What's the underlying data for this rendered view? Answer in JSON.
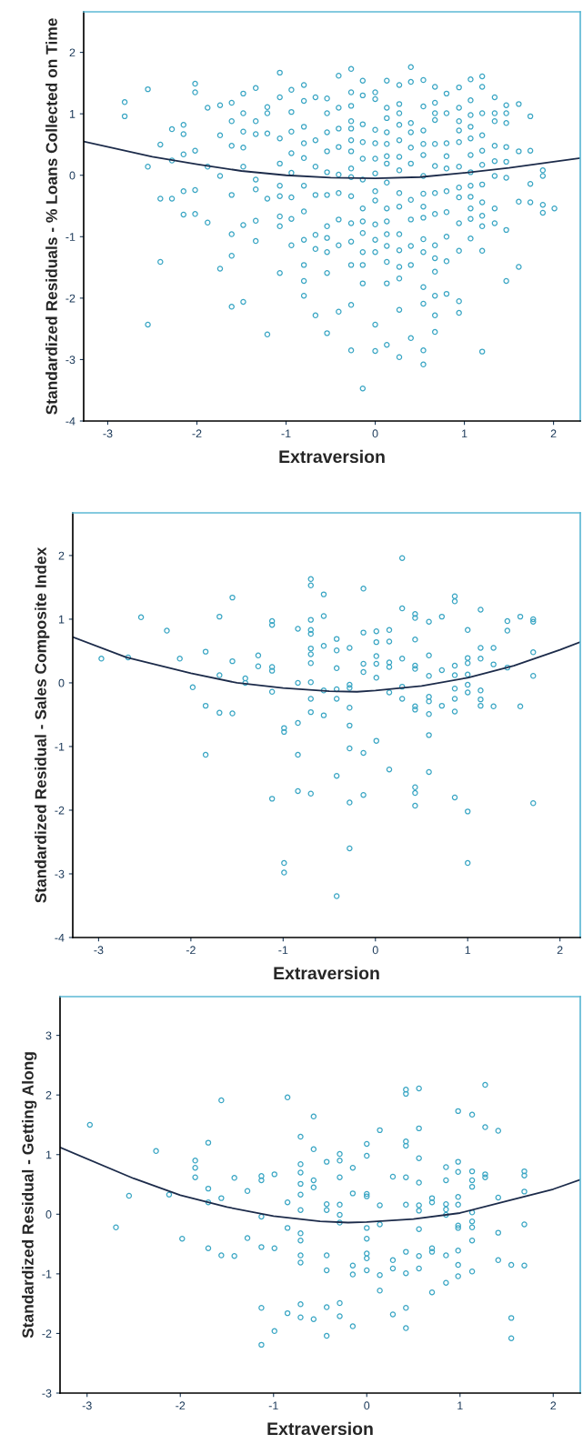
{
  "chart_data": [
    {
      "type": "scatter",
      "xlabel": "Extraversion",
      "ylabel": "Standardized Residuals - % Loans Collected on Time",
      "xlim": [
        -3.27,
        2.3
      ],
      "ylim": [
        -4,
        2.66
      ],
      "xticks": [
        -3,
        -2,
        -1,
        0,
        1,
        2
      ],
      "yticks": [
        -4,
        -3,
        -2,
        -1,
        0,
        1,
        2
      ],
      "grid": false,
      "marker": "circle",
      "series": [
        {
          "color": "#3aa6c4",
          "x": [
            -2.81,
            -2.81,
            -2.55,
            -2.55,
            -2.55,
            -2.41,
            -2.41,
            -2.41,
            -2.28,
            -2.28,
            -2.28,
            -2.15,
            -2.15,
            -2.15,
            -2.15,
            -2.15,
            -2.02,
            -2.02,
            -2.02,
            -2.02,
            -2.02,
            -1.88,
            -1.88,
            -1.88,
            -1.74,
            -1.74,
            -1.74,
            -1.74,
            -1.61,
            -1.61,
            -1.61,
            -1.61,
            -1.61,
            -1.61,
            -1.61,
            -1.48,
            -1.48,
            -1.48,
            -1.48,
            -1.48,
            -1.48,
            -1.48,
            -1.34,
            -1.34,
            -1.34,
            -1.34,
            -1.34,
            -1.34,
            -1.34,
            -1.21,
            -1.21,
            -1.21,
            -1.21,
            -1.21,
            -1.07,
            -1.07,
            -1.07,
            -1.07,
            -1.07,
            -1.07,
            -1.07,
            -1.07,
            -1.07,
            -0.94,
            -0.94,
            -0.94,
            -0.94,
            -0.94,
            -0.94,
            -0.94,
            -0.94,
            -0.8,
            -0.8,
            -0.8,
            -0.8,
            -0.8,
            -0.8,
            -0.8,
            -0.8,
            -0.8,
            -0.8,
            -0.8,
            -0.67,
            -0.67,
            -0.67,
            -0.67,
            -0.67,
            -0.67,
            -0.67,
            -0.54,
            -0.54,
            -0.54,
            -0.54,
            -0.54,
            -0.54,
            -0.54,
            -0.54,
            -0.54,
            -0.54,
            -0.54,
            -0.41,
            -0.41,
            -0.41,
            -0.41,
            -0.41,
            -0.41,
            -0.41,
            -0.41,
            -0.41,
            -0.27,
            -0.27,
            -0.27,
            -0.27,
            -0.27,
            -0.27,
            -0.27,
            -0.27,
            -0.27,
            -0.27,
            -0.27,
            -0.27,
            -0.27,
            -0.27,
            -0.27,
            -0.14,
            -0.14,
            -0.14,
            -0.14,
            -0.14,
            -0.14,
            -0.14,
            -0.14,
            -0.14,
            -0.14,
            -0.14,
            -0.14,
            -0.14,
            0,
            0,
            0,
            0,
            0,
            0,
            0,
            0,
            0,
            0,
            0,
            0,
            0,
            0.13,
            0.13,
            0.13,
            0.13,
            0.13,
            0.13,
            0.13,
            0.13,
            0.13,
            0.13,
            0.13,
            0.13,
            0.13,
            0.13,
            0.13,
            0.27,
            0.27,
            0.27,
            0.27,
            0.27,
            0.27,
            0.27,
            0.27,
            0.27,
            0.27,
            0.27,
            0.27,
            0.27,
            0.27,
            0.27,
            0.4,
            0.4,
            0.4,
            0.4,
            0.4,
            0.4,
            0.4,
            0.4,
            0.4,
            0.4,
            0.4,
            0.54,
            0.54,
            0.54,
            0.54,
            0.54,
            0.54,
            0.54,
            0.54,
            0.54,
            0.54,
            0.54,
            0.54,
            0.54,
            0.54,
            0.54,
            0.67,
            0.67,
            0.67,
            0.67,
            0.67,
            0.67,
            0.67,
            0.67,
            0.67,
            0.67,
            0.67,
            0.67,
            0.67,
            0.67,
            0.8,
            0.8,
            0.8,
            0.8,
            0.8,
            0.8,
            0.8,
            0.8,
            0.8,
            0.8,
            0.94,
            0.94,
            0.94,
            0.94,
            0.94,
            0.94,
            0.94,
            0.94,
            0.94,
            0.94,
            0.94,
            0.94,
            1.07,
            1.07,
            1.07,
            1.07,
            1.07,
            1.07,
            1.07,
            1.07,
            1.07,
            1.07,
            1.07,
            1.07,
            1.2,
            1.2,
            1.2,
            1.2,
            1.2,
            1.2,
            1.2,
            1.2,
            1.2,
            1.2,
            1.2,
            1.2,
            1.34,
            1.34,
            1.34,
            1.34,
            1.34,
            1.34,
            1.34,
            1.34,
            1.47,
            1.47,
            1.47,
            1.47,
            1.47,
            1.47,
            1.47,
            1.47,
            1.61,
            1.61,
            1.61,
            1.61,
            1.74,
            1.74,
            1.74,
            1.74,
            1.88,
            1.88,
            1.88,
            1.88,
            2.01
          ],
          "values": [
            1.19,
            0.96,
            1.4,
            0.14,
            -2.43,
            0.5,
            -0.38,
            -1.41,
            0.75,
            -0.38,
            0.24,
            0.82,
            0.67,
            0.34,
            -0.26,
            -0.64,
            1.49,
            1.35,
            0.4,
            -0.24,
            -0.63,
            1.1,
            0.14,
            -0.77,
            1.14,
            0.65,
            -0.01,
            -1.52,
            1.18,
            0.88,
            0.48,
            -0.32,
            -0.96,
            -1.31,
            -2.14,
            1.33,
            1.01,
            0.71,
            0.45,
            0.14,
            -0.81,
            -2.06,
            1.42,
            0.88,
            0.67,
            -0.07,
            -0.23,
            -0.74,
            -1.07,
            1.11,
            1.01,
            0.68,
            -0.38,
            -2.59,
            1.67,
            1.27,
            0.6,
            0.19,
            -0.17,
            -0.34,
            -0.67,
            -0.83,
            -1.59,
            1.39,
            1.03,
            0.71,
            0.36,
            0.04,
            -0.36,
            -0.71,
            -1.14,
            1.47,
            1.21,
            0.79,
            0.52,
            0.28,
            -0.17,
            -0.59,
            -1.05,
            -1.46,
            -1.72,
            -1.96,
            1.27,
            0.57,
            0.14,
            -0.32,
            -0.97,
            -1.2,
            -2.28,
            1.25,
            1.01,
            0.7,
            0.39,
            0.05,
            -0.32,
            -0.83,
            -1.02,
            -1.25,
            -1.59,
            -2.57,
            1.62,
            1.1,
            0.76,
            0.46,
            0.01,
            -0.29,
            -0.72,
            -1.14,
            -2.22,
            1.73,
            1.35,
            1.13,
            0.88,
            0.76,
            0.57,
            0.39,
            0.11,
            -0.03,
            -0.34,
            -0.78,
            -1.08,
            -1.46,
            -2.11,
            -2.85,
            1.54,
            1.3,
            0.83,
            0.54,
            0.27,
            -0.07,
            -0.54,
            -0.75,
            -0.94,
            -1.25,
            -1.46,
            -1.76,
            -3.47,
            1.35,
            1.24,
            0.74,
            0.52,
            0.27,
            0.03,
            -0.26,
            -0.41,
            -0.8,
            -1.05,
            -1.25,
            -2.43,
            -2.86,
            1.54,
            1.1,
            0.93,
            0.7,
            0.51,
            0.31,
            0.19,
            -0.12,
            -0.54,
            -0.75,
            -0.96,
            -1.15,
            -1.41,
            -1.76,
            -2.76,
            1.47,
            1.16,
            1.01,
            0.82,
            0.57,
            0.3,
            0.08,
            -0.29,
            -0.51,
            -0.96,
            -1.22,
            -1.49,
            -1.68,
            -2.19,
            -2.96,
            1.76,
            1.52,
            0.85,
            0.7,
            0.45,
            0.19,
            -0.4,
            -0.72,
            -1.15,
            -1.46,
            -2.65,
            1.55,
            1.12,
            0.73,
            0.51,
            0.33,
            -0.01,
            -0.3,
            -0.51,
            -0.69,
            -1.04,
            -1.25,
            -1.82,
            -2.09,
            -2.85,
            -3.08,
            1.44,
            1.18,
            1.01,
            0.9,
            0.51,
            0.15,
            -0.29,
            -0.63,
            -1.14,
            -1.35,
            -1.57,
            -1.96,
            -2.28,
            -2.55,
            1.33,
            1.01,
            0.52,
            0.31,
            0.11,
            -0.26,
            -0.6,
            -1.0,
            -1.4,
            -1.93,
            1.43,
            1.1,
            0.88,
            0.73,
            0.54,
            0.14,
            -0.2,
            -0.36,
            -0.78,
            -1.23,
            -2.05,
            -2.24,
            1.56,
            1.22,
            0.98,
            0.79,
            0.6,
            0.33,
            0.05,
            -0.17,
            -0.35,
            -0.54,
            -0.71,
            -1.03,
            1.61,
            1.44,
            1.01,
            0.65,
            0.4,
            0.17,
            -0.15,
            -0.44,
            -0.66,
            -0.83,
            -1.23,
            -2.87,
            1.27,
            1.01,
            0.88,
            0.48,
            0.23,
            -0.01,
            -0.54,
            -0.78,
            1.14,
            1.01,
            0.85,
            0.46,
            0.22,
            -0.04,
            -0.89,
            -1.72,
            1.16,
            0.39,
            -0.43,
            -1.49,
            0.96,
            0.4,
            -0.14,
            -0.44,
            0.08,
            -0.01,
            -0.48,
            -0.61,
            -0.54
          ]
        },
        {
          "type": "line",
          "color": "#1c2b4a",
          "line_style": "solid",
          "marker": "none",
          "x": [
            -3.27,
            -2.5,
            -2,
            -1.5,
            -1,
            -0.5,
            0,
            0.5,
            1,
            1.5,
            2,
            2.3
          ],
          "values": [
            0.55,
            0.3,
            0.18,
            0.07,
            0.0,
            -0.04,
            -0.05,
            -0.03,
            0.04,
            0.12,
            0.22,
            0.28
          ]
        }
      ]
    },
    {
      "type": "scatter",
      "xlabel": "Extraversion",
      "ylabel": "Standardized Residual - Sales Composite Index",
      "xlim": [
        -3.28,
        2.22
      ],
      "ylim": [
        -4,
        2.67
      ],
      "xticks": [
        -3,
        -2,
        -1,
        0,
        1,
        2
      ],
      "yticks": [
        -4,
        -3,
        -2,
        -1,
        0,
        1,
        2
      ],
      "grid": false,
      "marker": "circle",
      "series": [
        {
          "color": "#3aa6c4",
          "x": [
            -2.97,
            -2.68,
            -2.54,
            -2.26,
            -2.12,
            -1.98,
            -1.84,
            -1.84,
            -1.84,
            -1.69,
            -1.69,
            -1.69,
            -1.55,
            -1.55,
            -1.55,
            -1.41,
            -1.41,
            -1.27,
            -1.27,
            -1.12,
            -1.12,
            -1.12,
            -1.12,
            -1.12,
            -1.12,
            -0.99,
            -0.99,
            -0.99,
            -0.99,
            -0.84,
            -0.84,
            -0.84,
            -0.84,
            -0.84,
            -0.7,
            -0.7,
            -0.7,
            -0.7,
            -0.7,
            -0.7,
            -0.7,
            -0.7,
            -0.7,
            -0.7,
            -0.7,
            -0.7,
            -0.56,
            -0.56,
            -0.56,
            -0.56,
            -0.56,
            -0.42,
            -0.42,
            -0.42,
            -0.42,
            -0.42,
            -0.42,
            -0.42,
            -0.28,
            -0.28,
            -0.28,
            -0.28,
            -0.28,
            -0.28,
            -0.28,
            -0.28,
            -0.13,
            -0.13,
            -0.13,
            -0.13,
            -0.13,
            -0.13,
            0.01,
            0.01,
            0.01,
            0.01,
            0.01,
            0.01,
            0.15,
            0.15,
            0.15,
            0.15,
            0.15,
            0.15,
            0.29,
            0.29,
            0.29,
            0.29,
            0.29,
            0.43,
            0.43,
            0.43,
            0.43,
            0.43,
            0.43,
            0.43,
            0.43,
            0.43,
            0.43,
            0.58,
            0.58,
            0.58,
            0.58,
            0.58,
            0.58,
            0.58,
            0.58,
            0.72,
            0.72,
            0.72,
            0.86,
            0.86,
            0.86,
            0.86,
            0.86,
            0.86,
            0.86,
            0.86,
            1.0,
            1.0,
            1.0,
            1.0,
            1.0,
            1.0,
            1.0,
            1.0,
            1.14,
            1.14,
            1.14,
            1.14,
            1.14,
            1.14,
            1.28,
            1.28,
            1.28,
            1.43,
            1.43,
            1.43,
            1.57,
            1.57,
            1.71,
            1.71,
            1.71,
            1.71,
            1.71
          ],
          "values": [
            0.38,
            0.4,
            1.03,
            0.82,
            0.38,
            -0.07,
            0.49,
            -0.36,
            -1.13,
            1.04,
            0.12,
            -0.47,
            1.34,
            0.34,
            -0.48,
            0.07,
            0.0,
            0.43,
            0.26,
            0.97,
            0.91,
            0.25,
            0.19,
            -0.14,
            -1.82,
            -0.71,
            -0.77,
            -2.83,
            -2.98,
            0.85,
            0.0,
            -0.63,
            -1.13,
            -1.7,
            1.63,
            1.53,
            0.99,
            0.83,
            0.77,
            0.54,
            0.45,
            0.31,
            0.01,
            -0.25,
            -0.46,
            -1.74,
            1.39,
            1.05,
            0.58,
            -0.12,
            -0.51,
            0.69,
            0.51,
            0.23,
            -0.1,
            -0.25,
            -1.46,
            -3.35,
            0.55,
            -0.03,
            -0.08,
            -0.39,
            -0.67,
            -1.03,
            -1.88,
            -2.6,
            1.48,
            0.79,
            0.3,
            0.17,
            -1.1,
            -1.76,
            0.81,
            0.64,
            0.42,
            0.3,
            0.08,
            -0.91,
            0.83,
            0.65,
            0.32,
            0.25,
            -0.15,
            -1.36,
            1.96,
            1.17,
            0.38,
            -0.06,
            -0.25,
            1.08,
            1.02,
            0.68,
            0.27,
            0.22,
            -0.37,
            -0.42,
            -1.64,
            -1.73,
            -1.93,
            0.96,
            0.43,
            0.11,
            -0.22,
            -0.29,
            -0.49,
            -0.82,
            -1.4,
            1.04,
            0.2,
            -0.36,
            1.36,
            1.28,
            0.27,
            0.12,
            -0.09,
            -0.25,
            -0.45,
            -1.8,
            0.83,
            0.39,
            0.31,
            0.13,
            -0.03,
            -0.15,
            -2.02,
            -2.83,
            1.15,
            0.55,
            0.38,
            -0.12,
            -0.26,
            -0.36,
            0.55,
            0.29,
            -0.37,
            0.97,
            0.82,
            0.24,
            1.04,
            -0.37,
            1.0,
            0.96,
            0.48,
            0.11,
            -1.89
          ]
        },
        {
          "type": "line",
          "color": "#1c2b4a",
          "line_style": "solid",
          "marker": "none",
          "x": [
            -3.28,
            -2.7,
            -2,
            -1.5,
            -1,
            -0.5,
            -0.2,
            0,
            0.5,
            1,
            1.5,
            2,
            2.22
          ],
          "values": [
            0.72,
            0.4,
            0.15,
            0.0,
            -0.08,
            -0.13,
            -0.14,
            -0.12,
            -0.05,
            0.08,
            0.27,
            0.52,
            0.64
          ]
        }
      ]
    },
    {
      "type": "scatter",
      "xlabel": "Extraversion",
      "ylabel": "Standardized Residual - Getting Along",
      "xlim": [
        -3.29,
        2.29
      ],
      "ylim": [
        -3,
        3.65
      ],
      "xticks": [
        -3,
        -2,
        -1,
        0,
        1,
        2
      ],
      "yticks": [
        -3,
        -2,
        -1,
        0,
        1,
        2,
        3
      ],
      "grid": false,
      "marker": "circle",
      "series": [
        {
          "color": "#3aa6c4",
          "x": [
            -2.97,
            -2.69,
            -2.55,
            -2.26,
            -2.12,
            -1.98,
            -1.84,
            -1.84,
            -1.84,
            -1.7,
            -1.7,
            -1.7,
            -1.7,
            -1.56,
            -1.56,
            -1.56,
            -1.42,
            -1.42,
            -1.28,
            -1.28,
            -1.13,
            -1.13,
            -1.13,
            -1.13,
            -1.13,
            -1.13,
            -0.99,
            -0.99,
            -0.99,
            -0.85,
            -0.85,
            -0.85,
            -0.85,
            -0.71,
            -0.71,
            -0.71,
            -0.71,
            -0.71,
            -0.71,
            -0.71,
            -0.71,
            -0.71,
            -0.71,
            -0.71,
            -0.71,
            -0.57,
            -0.57,
            -0.57,
            -0.57,
            -0.57,
            -0.43,
            -0.43,
            -0.43,
            -0.43,
            -0.43,
            -0.43,
            -0.43,
            -0.29,
            -0.29,
            -0.29,
            -0.29,
            -0.29,
            -0.29,
            -0.29,
            -0.29,
            -0.15,
            -0.15,
            -0.15,
            -0.15,
            -0.15,
            0.0,
            0.0,
            0.0,
            0.0,
            0.0,
            0.0,
            0.0,
            0.0,
            0.0,
            0.14,
            0.14,
            0.14,
            0.14,
            0.14,
            0.28,
            0.28,
            0.28,
            0.28,
            0.42,
            0.42,
            0.42,
            0.42,
            0.42,
            0.42,
            0.42,
            0.42,
            0.42,
            0.42,
            0.56,
            0.56,
            0.56,
            0.56,
            0.56,
            0.56,
            0.56,
            0.56,
            0.56,
            0.7,
            0.7,
            0.7,
            0.7,
            0.7,
            0.85,
            0.85,
            0.85,
            0.85,
            0.85,
            0.85,
            0.85,
            0.98,
            0.98,
            0.98,
            0.98,
            0.98,
            0.98,
            0.98,
            0.98,
            0.98,
            0.98,
            1.13,
            1.13,
            1.13,
            1.13,
            1.13,
            1.13,
            1.13,
            1.13,
            1.13,
            1.27,
            1.27,
            1.27,
            1.27,
            1.41,
            1.41,
            1.41,
            1.41,
            1.55,
            1.55,
            1.55,
            1.69,
            1.69,
            1.69,
            1.69,
            1.69
          ],
          "values": [
            1.5,
            -0.22,
            0.31,
            1.06,
            0.33,
            -0.41,
            0.9,
            0.78,
            0.62,
            1.2,
            0.43,
            0.2,
            -0.57,
            1.91,
            0.27,
            -0.69,
            0.61,
            -0.7,
            0.39,
            -0.4,
            0.64,
            0.57,
            -0.04,
            -0.55,
            -1.57,
            -2.19,
            0.67,
            -0.57,
            -1.96,
            1.96,
            0.2,
            -0.23,
            -1.66,
            1.3,
            0.84,
            0.7,
            0.51,
            0.33,
            0.07,
            -0.32,
            -0.44,
            -0.69,
            -0.81,
            -1.51,
            -1.73,
            1.64,
            1.09,
            0.57,
            0.45,
            -1.76,
            0.88,
            0.17,
            0.07,
            -0.69,
            -0.94,
            -1.56,
            -2.04,
            1.01,
            0.9,
            0.62,
            0.16,
            -0.01,
            -0.14,
            -1.49,
            -1.71,
            0.78,
            0.35,
            -0.86,
            -1.01,
            -1.88,
            1.18,
            0.98,
            0.34,
            0.3,
            -0.23,
            -0.41,
            -0.66,
            -0.74,
            -0.94,
            1.41,
            0.15,
            -0.17,
            -1.02,
            -1.28,
            0.63,
            -0.77,
            -0.91,
            -1.68,
            2.09,
            2.02,
            1.22,
            1.15,
            0.62,
            0.16,
            -0.63,
            -0.99,
            -1.57,
            -1.91,
            2.11,
            1.44,
            0.94,
            0.53,
            0.15,
            0.06,
            -0.25,
            -0.7,
            -0.91,
            0.27,
            0.2,
            -0.57,
            -0.63,
            -1.31,
            0.79,
            0.57,
            0.17,
            0.08,
            -0.01,
            -0.69,
            -1.15,
            1.73,
            0.88,
            0.71,
            0.29,
            0.16,
            -0.19,
            -0.23,
            -0.61,
            -0.85,
            -1.04,
            1.67,
            0.72,
            0.57,
            0.46,
            0.03,
            -0.12,
            -0.22,
            -0.44,
            -0.96,
            2.17,
            1.46,
            0.67,
            0.62,
            1.4,
            0.28,
            -0.31,
            -0.77,
            -0.85,
            -1.74,
            -2.08,
            0.72,
            0.65,
            0.38,
            -0.17,
            -0.86
          ]
        },
        {
          "type": "line",
          "color": "#1c2b4a",
          "line_style": "solid",
          "marker": "none",
          "x": [
            -3.29,
            -2.5,
            -2,
            -1.5,
            -1,
            -0.5,
            -0.2,
            0,
            0.5,
            1,
            1.5,
            2,
            2.29
          ],
          "values": [
            1.12,
            0.6,
            0.32,
            0.12,
            -0.03,
            -0.12,
            -0.14,
            -0.13,
            -0.08,
            0.02,
            0.22,
            0.42,
            0.58
          ]
        }
      ]
    }
  ]
}
